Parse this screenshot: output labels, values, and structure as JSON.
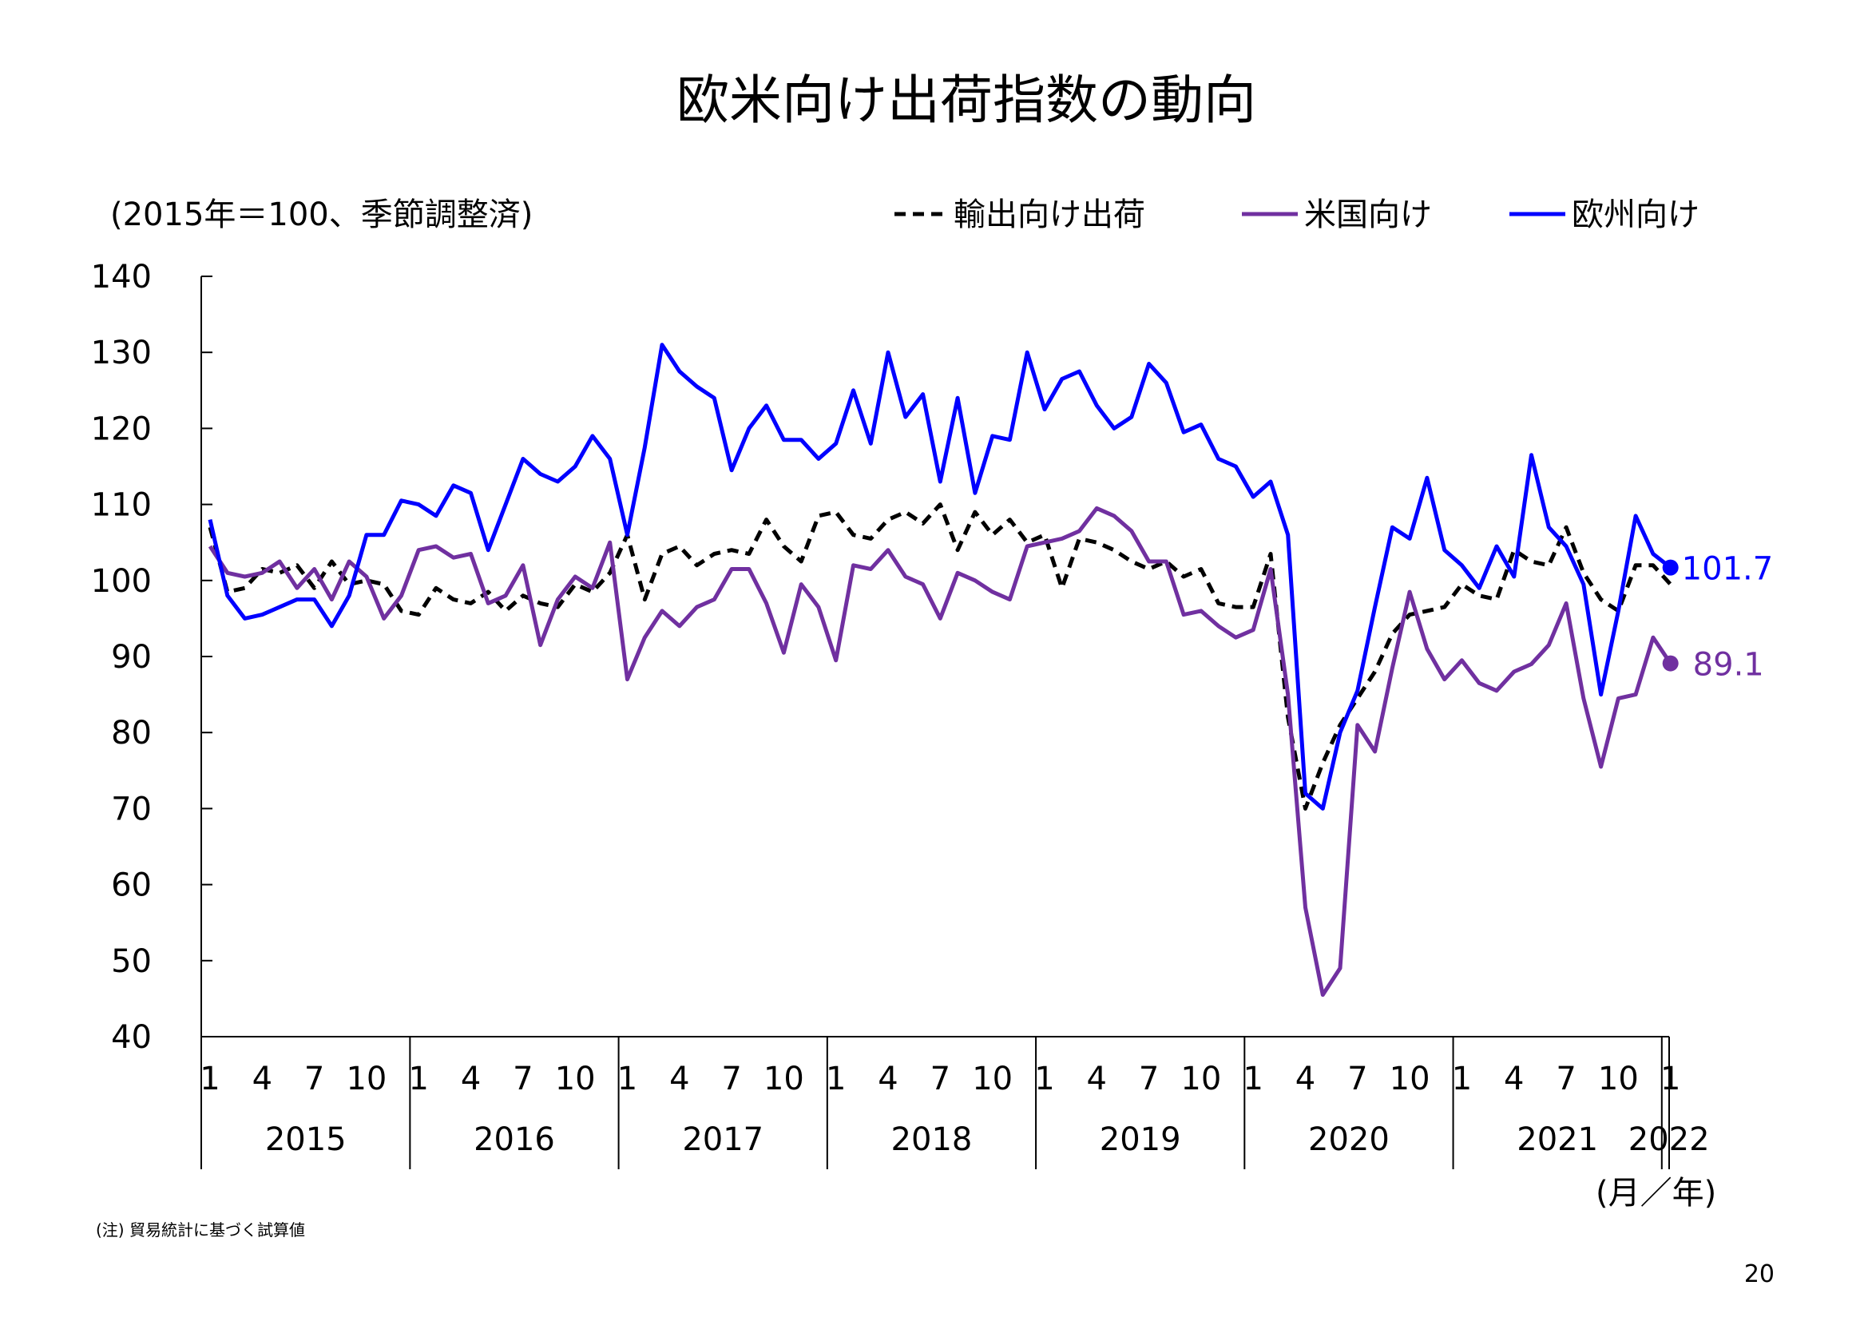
{
  "page": {
    "title": "欧米向け出荷指数の動向",
    "page_number": "20",
    "note": "(注) 貿易統計に基づく試算値"
  },
  "chart_data": {
    "type": "line",
    "title": "欧米向け出荷指数の動向",
    "unit_label": "(2015年＝100、季節調整済)",
    "xlabel": "(月／年)",
    "ylim": [
      40,
      140
    ],
    "yticks": [
      40,
      50,
      60,
      70,
      80,
      90,
      100,
      110,
      120,
      130,
      140
    ],
    "month_ticks": [
      "1",
      "4",
      "7",
      "10"
    ],
    "years": [
      "2015",
      "2016",
      "2017",
      "2018",
      "2019",
      "2020",
      "2021",
      "2022"
    ],
    "grid": false,
    "legend_position": "top-right",
    "x": [
      "2015-01",
      "2015-02",
      "2015-03",
      "2015-04",
      "2015-05",
      "2015-06",
      "2015-07",
      "2015-08",
      "2015-09",
      "2015-10",
      "2015-11",
      "2015-12",
      "2016-01",
      "2016-02",
      "2016-03",
      "2016-04",
      "2016-05",
      "2016-06",
      "2016-07",
      "2016-08",
      "2016-09",
      "2016-10",
      "2016-11",
      "2016-12",
      "2017-01",
      "2017-02",
      "2017-03",
      "2017-04",
      "2017-05",
      "2017-06",
      "2017-07",
      "2017-08",
      "2017-09",
      "2017-10",
      "2017-11",
      "2017-12",
      "2018-01",
      "2018-02",
      "2018-03",
      "2018-04",
      "2018-05",
      "2018-06",
      "2018-07",
      "2018-08",
      "2018-09",
      "2018-10",
      "2018-11",
      "2018-12",
      "2019-01",
      "2019-02",
      "2019-03",
      "2019-04",
      "2019-05",
      "2019-06",
      "2019-07",
      "2019-08",
      "2019-09",
      "2019-10",
      "2019-11",
      "2019-12",
      "2020-01",
      "2020-02",
      "2020-03",
      "2020-04",
      "2020-05",
      "2020-06",
      "2020-07",
      "2020-08",
      "2020-09",
      "2020-10",
      "2020-11",
      "2020-12",
      "2021-01",
      "2021-02",
      "2021-03",
      "2021-04",
      "2021-05",
      "2021-06",
      "2021-07",
      "2021-08",
      "2021-09",
      "2021-10",
      "2021-11",
      "2021-12",
      "2022-01"
    ],
    "series": [
      {
        "name": "輸出向け出荷",
        "color": "#000000",
        "style": "dashed",
        "values": [
          107,
          98.5,
          99,
          101.5,
          101,
          102,
          99,
          102.5,
          99.5,
          100,
          99.5,
          96,
          95.5,
          99,
          97.5,
          97,
          98.5,
          96,
          98,
          97,
          96.5,
          99.5,
          98.5,
          101,
          106,
          97.5,
          103.5,
          104.5,
          102,
          103.5,
          104,
          103.5,
          108,
          104.5,
          102.5,
          108.5,
          109,
          106,
          105.5,
          108,
          109,
          107.5,
          110,
          104,
          109,
          106,
          108,
          105,
          106,
          99,
          105.5,
          105,
          104,
          102.5,
          101.5,
          102.5,
          100.5,
          101.5,
          97,
          96.5,
          96.5,
          103.5,
          82,
          70,
          76,
          81,
          84.5,
          88,
          93,
          95.5,
          96,
          96.5,
          99.5,
          98,
          97.5,
          104,
          102.5,
          102,
          107,
          101,
          97.5,
          96,
          102,
          102,
          99.5
        ]
      },
      {
        "name": "米国向け",
        "color": "#7030A0",
        "style": "solid",
        "values": [
          104.5,
          101,
          100.5,
          101,
          102.5,
          99,
          101.5,
          97.5,
          102.5,
          100.5,
          95,
          98,
          104,
          104.5,
          103,
          103.5,
          97,
          98,
          102,
          91.5,
          97.5,
          100.5,
          99,
          105,
          87,
          92.5,
          96,
          94,
          96.5,
          97.5,
          101.5,
          101.5,
          97,
          90.5,
          99.5,
          96.5,
          89.5,
          102,
          101.5,
          104,
          100.5,
          99.5,
          95,
          101,
          100,
          98.5,
          97.5,
          104.5,
          105,
          105.5,
          106.5,
          109.5,
          108.5,
          106.5,
          102.5,
          102.5,
          95.5,
          96,
          94,
          92.5,
          93.5,
          101.5,
          85,
          57,
          45.5,
          49,
          81,
          77.5,
          88.5,
          98.5,
          91,
          87,
          89.5,
          86.5,
          85.5,
          88,
          89,
          91.5,
          97,
          84.5,
          75.5,
          84.5,
          85,
          92.5,
          89.1
        ]
      },
      {
        "name": "欧州向け",
        "color": "#0000FF",
        "style": "solid",
        "values": [
          108,
          98,
          95,
          95.5,
          96.5,
          97.5,
          97.5,
          94,
          98,
          106,
          106,
          110.5,
          110,
          108.5,
          112.5,
          111.5,
          104,
          110,
          116,
          114,
          113,
          115,
          119,
          116,
          106,
          117.5,
          131,
          127.5,
          125.5,
          124,
          114.5,
          120,
          123,
          118.5,
          118.5,
          116,
          118,
          125,
          118,
          130,
          121.5,
          124.5,
          113,
          124,
          111.5,
          119,
          118.5,
          130,
          122.5,
          126.5,
          127.5,
          123,
          120,
          121.5,
          128.5,
          126,
          119.5,
          120.5,
          116,
          115,
          111,
          113,
          106,
          72,
          70,
          80,
          85.5,
          96.5,
          107,
          105.5,
          113.5,
          104,
          102,
          99,
          104.5,
          100.5,
          116.5,
          107,
          104.5,
          99.5,
          85,
          96,
          108.5,
          103.5,
          101.7
        ]
      }
    ],
    "end_labels": [
      "101.7",
      "89.1"
    ]
  }
}
